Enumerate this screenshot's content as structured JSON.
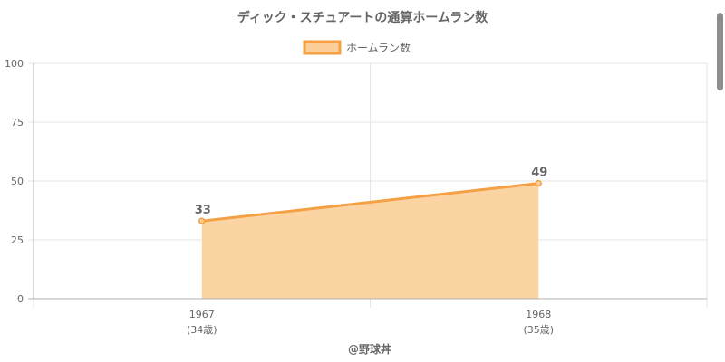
{
  "chart_data": {
    "type": "area",
    "title": "ディック・スチュアートの通算ホームラン数",
    "legend": {
      "label": "ホームラン数",
      "position": "top"
    },
    "categories": [
      "1967",
      "1968"
    ],
    "sublabels": [
      "(34歳)",
      "(35歳)"
    ],
    "series": [
      {
        "name": "ホームラン数",
        "values": [
          33,
          49
        ]
      }
    ],
    "data_labels": [
      "33",
      "49"
    ],
    "ylim": [
      0,
      100
    ],
    "yticks": [
      "0",
      "25",
      "50",
      "75",
      "100"
    ],
    "grid": true,
    "footer": "@野球丼",
    "colors": {
      "line": "#f4a045",
      "fill": "#fccf9a",
      "grid": "#e6e6e6",
      "axis": "#b0b0b0",
      "text": "#666666",
      "title": "#666666"
    }
  }
}
